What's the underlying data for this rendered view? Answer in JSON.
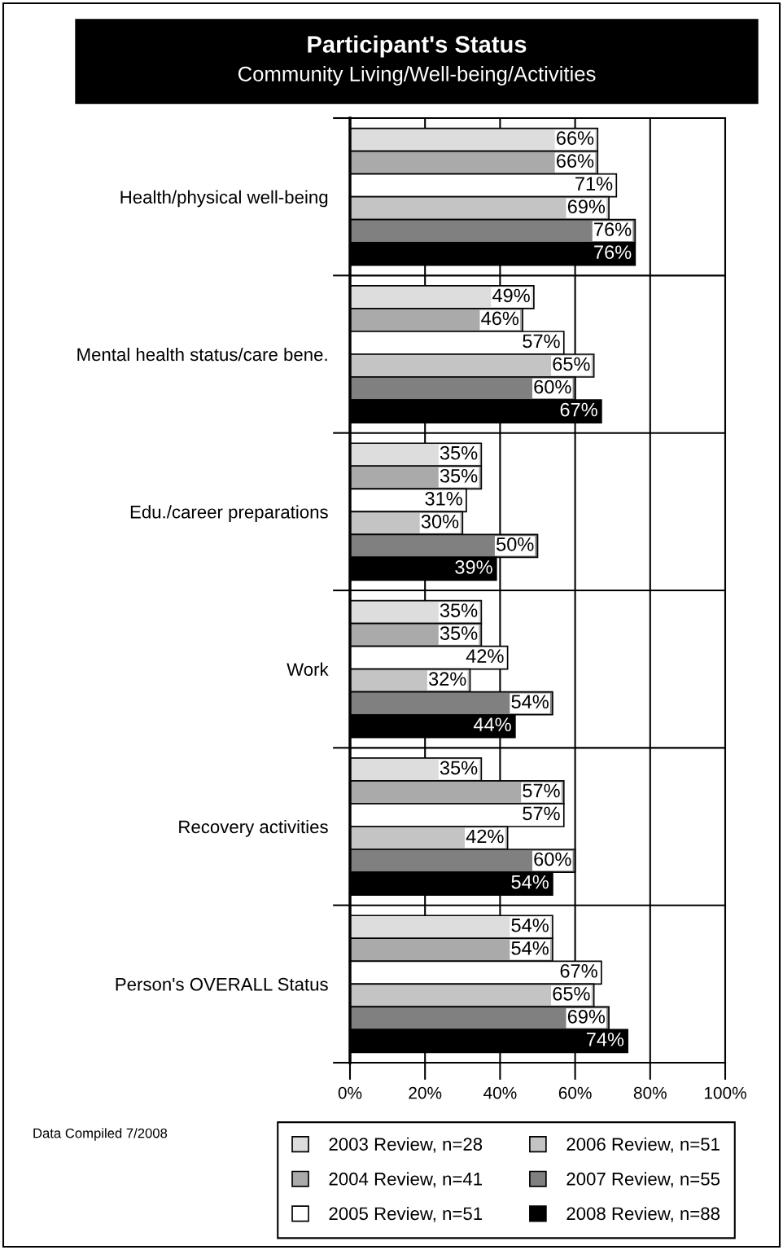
{
  "chart_data": {
    "type": "bar",
    "orientation": "horizontal",
    "title": "Participant's Status",
    "subtitle": "Community Living/Well-being/Activities",
    "categories": [
      "Health/physical well-being",
      "Mental health status/care bene.",
      "Edu./career preparations",
      "Work",
      "Recovery activities",
      "Person's OVERALL Status"
    ],
    "series": [
      {
        "name": "2003 Review, n=28",
        "color": "#dddddd",
        "values": [
          66,
          49,
          35,
          35,
          35,
          54
        ],
        "value_labels": [
          "66%",
          "49%",
          "35%",
          "35%",
          "35%",
          "54%"
        ]
      },
      {
        "name": "2004 Review, n=41",
        "color": "#aaaaaa",
        "values": [
          66,
          46,
          35,
          35,
          57,
          54
        ],
        "value_labels": [
          "66%",
          "46%",
          "35%",
          "35%",
          "57%",
          "54%"
        ]
      },
      {
        "name": "2005 Review, n=51",
        "color": "#ffffff",
        "values": [
          71,
          57,
          31,
          42,
          57,
          67
        ],
        "value_labels": [
          "71%",
          "57%",
          "31%",
          "42%",
          "57%",
          "67%"
        ]
      },
      {
        "name": "2006 Review, n=51",
        "color": "#c4c4c4",
        "values": [
          69,
          65,
          30,
          32,
          42,
          65
        ],
        "value_labels": [
          "69%",
          "65%",
          "30%",
          "32%",
          "42%",
          "65%"
        ]
      },
      {
        "name": "2007 Review, n=55",
        "color": "#808080",
        "values": [
          76,
          60,
          50,
          54,
          60,
          69
        ],
        "value_labels": [
          "76%",
          "60%",
          "50%",
          "54%",
          "60%",
          "69%"
        ]
      },
      {
        "name": "2008 Review, n=88",
        "color": "#000000",
        "values": [
          76,
          67,
          39,
          44,
          54,
          74
        ],
        "value_labels": [
          "76%",
          "67%",
          "39%",
          "44%",
          "54%",
          "74%"
        ]
      }
    ],
    "xlim": [
      0,
      100
    ],
    "xticks": [
      {
        "value": 0,
        "label": "0%"
      },
      {
        "value": 20,
        "label": "20%"
      },
      {
        "value": 40,
        "label": "40%"
      },
      {
        "value": 60,
        "label": "60%"
      },
      {
        "value": 80,
        "label": "80%"
      },
      {
        "value": 100,
        "label": "100%"
      }
    ],
    "grid": true,
    "legend": "bottom",
    "annotations": [
      "Data Compiled 7/2008"
    ]
  }
}
